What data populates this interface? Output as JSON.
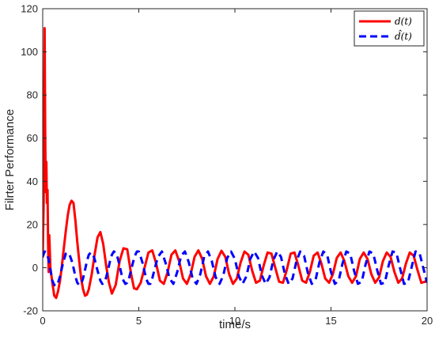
{
  "chart_data": {
    "type": "line",
    "title": "",
    "xlabel": "time/s",
    "ylabel": "Filrter Performance",
    "xlim": [
      0,
      20
    ],
    "ylim": [
      -20,
      120
    ],
    "xticks": [
      0,
      5,
      10,
      15,
      20
    ],
    "yticks": [
      -20,
      0,
      20,
      40,
      60,
      80,
      100,
      120
    ],
    "xtick_labels": [
      "0",
      "5",
      "10",
      "15",
      "20"
    ],
    "ytick_labels": [
      "-20",
      "0",
      "20",
      "40",
      "60",
      "80",
      "100",
      "120"
    ],
    "grid": false,
    "legend_position": "top-right",
    "series": [
      {
        "name": "d(t)",
        "name_display": "d(t)",
        "color": "#ff0000",
        "style": "solid",
        "x": [
          0.0,
          0.05,
          0.1,
          0.13,
          0.16,
          0.19,
          0.22,
          0.25,
          0.28,
          0.31,
          0.34,
          0.4,
          0.5,
          0.6,
          0.7,
          0.8,
          0.9,
          1.0,
          1.1,
          1.2,
          1.3,
          1.4,
          1.5,
          1.6,
          1.7,
          1.8,
          1.9,
          2.0,
          2.1,
          2.2,
          2.3,
          2.4,
          2.55,
          2.7,
          2.85,
          3.0,
          3.15,
          3.3,
          3.45,
          3.6,
          3.8,
          4.0,
          4.2,
          4.4,
          4.6,
          4.75,
          4.9,
          5.1,
          5.3,
          5.5,
          5.7,
          5.9,
          6.1,
          6.3,
          6.5,
          6.7,
          6.9,
          7.1,
          7.3,
          7.5,
          7.7,
          7.9,
          8.1,
          8.3,
          8.5,
          8.7,
          8.9,
          9.1,
          9.3,
          9.5,
          9.7,
          9.9,
          10.1,
          10.3,
          10.5,
          10.7,
          10.9,
          11.1,
          11.3,
          11.5,
          11.7,
          11.9,
          12.1,
          12.3,
          12.5,
          12.7,
          12.9,
          13.1,
          13.3,
          13.5,
          13.7,
          13.9,
          14.1,
          14.3,
          14.5,
          14.7,
          14.9,
          15.1,
          15.3,
          15.5,
          15.7,
          15.9,
          16.1,
          16.3,
          16.5,
          16.7,
          16.9,
          17.1,
          17.3,
          17.5,
          17.7,
          17.9,
          18.1,
          18.3,
          18.5,
          18.7,
          18.9,
          19.1,
          19.3,
          19.5,
          19.7,
          19.9,
          20.0
        ],
        "y": [
          5.0,
          30.0,
          111.0,
          60.0,
          35.0,
          49.0,
          30.0,
          36.0,
          12.0,
          -2.0,
          15.0,
          0.0,
          -7.0,
          -13.0,
          -14.0,
          -11.0,
          -6.0,
          1.0,
          9.0,
          17.0,
          24.0,
          29.0,
          31.0,
          30.0,
          22.0,
          12.0,
          3.0,
          -5.0,
          -10.0,
          -13.0,
          -12.5,
          -10.0,
          -3.0,
          6.0,
          14.0,
          16.5,
          11.0,
          1.0,
          -7.0,
          -12.0,
          -8.0,
          3.0,
          9.0,
          8.5,
          -3.0,
          -9.5,
          -10.0,
          -7.0,
          0.0,
          7.0,
          8.0,
          2.0,
          -6.0,
          -7.5,
          -2.0,
          6.0,
          8.0,
          3.0,
          -5.0,
          -7.5,
          -3.0,
          5.0,
          8.0,
          4.0,
          -4.0,
          -7.5,
          -4.0,
          4.0,
          7.8,
          5.0,
          -3.0,
          -7.5,
          -5.0,
          2.5,
          7.5,
          6.0,
          -1.5,
          -7.0,
          -6.0,
          1.0,
          7.0,
          6.5,
          0.0,
          -6.5,
          -7.0,
          -1.0,
          6.5,
          7.0,
          1.0,
          -6.0,
          -7.0,
          -2.0,
          5.5,
          7.0,
          2.0,
          -5.0,
          -7.0,
          -3.0,
          4.5,
          7.0,
          3.0,
          -4.0,
          -7.0,
          -4.0,
          4.0,
          7.0,
          4.0,
          -3.0,
          -7.0,
          -4.5,
          3.0,
          7.0,
          5.0,
          -2.0,
          -7.0,
          -5.0,
          2.0,
          7.0,
          5.5,
          -1.0,
          -7.0,
          -6.5,
          -5.5
        ]
      },
      {
        "name": "d̂(t)",
        "name_display": "d̂(t)",
        "color": "#0000ff",
        "style": "dashed",
        "x": [
          0.0,
          0.1,
          0.2,
          0.3,
          0.4,
          0.5,
          0.6,
          0.7,
          0.8,
          0.9,
          1.0,
          1.1,
          1.2,
          1.3,
          1.4,
          1.5,
          1.6,
          1.7,
          1.8,
          1.9,
          2.0,
          2.1,
          2.2,
          2.3,
          2.4,
          2.5,
          2.6,
          2.7,
          2.8,
          2.9,
          3.0,
          3.1,
          3.2,
          3.3,
          3.4,
          3.5,
          3.6,
          3.7,
          3.8,
          3.9,
          4.0,
          4.1,
          4.2,
          4.3,
          4.4,
          4.5,
          4.6,
          4.7,
          4.8,
          4.9,
          5.0,
          5.1,
          5.2,
          5.3,
          5.4,
          5.5,
          5.6,
          5.7,
          5.8,
          5.9,
          6.0,
          6.2,
          6.4,
          6.6,
          6.8,
          7.0,
          7.2,
          7.4,
          7.6,
          7.8,
          8.0,
          8.2,
          8.4,
          8.6,
          8.8,
          9.0,
          9.2,
          9.4,
          9.6,
          9.8,
          10.0,
          10.2,
          10.4,
          10.6,
          10.8,
          11.0,
          11.2,
          11.4,
          11.6,
          11.8,
          12.0,
          12.2,
          12.4,
          12.6,
          12.8,
          13.0,
          13.2,
          13.4,
          13.6,
          13.8,
          14.0,
          14.2,
          14.4,
          14.6,
          14.8,
          15.0,
          15.2,
          15.4,
          15.6,
          15.8,
          16.0,
          16.2,
          16.4,
          16.6,
          16.8,
          17.0,
          17.2,
          17.4,
          17.6,
          17.8,
          18.0,
          18.2,
          18.4,
          18.6,
          18.8,
          19.0,
          19.2,
          19.4,
          19.6,
          19.8,
          20.0
        ],
        "y": [
          5.0,
          7.5,
          7.0,
          4.0,
          -1.0,
          -6.0,
          -8.0,
          -8.5,
          -7.0,
          -4.0,
          0.0,
          3.5,
          6.5,
          7.0,
          6.0,
          3.5,
          0.0,
          -4.0,
          -7.0,
          -8.0,
          -7.5,
          -5.0,
          -1.0,
          3.0,
          6.0,
          7.0,
          6.5,
          4.0,
          0.5,
          -3.0,
          -6.0,
          -7.5,
          -7.0,
          -4.5,
          -1.0,
          3.0,
          6.0,
          7.5,
          7.0,
          4.5,
          1.0,
          -3.0,
          -6.0,
          -7.5,
          -7.0,
          -4.5,
          -1.0,
          2.5,
          5.5,
          7.5,
          7.5,
          5.0,
          2.0,
          -2.0,
          -5.5,
          -7.5,
          -7.5,
          -5.0,
          -1.5,
          2.0,
          5.0,
          7.5,
          2.0,
          -5.0,
          -7.5,
          -2.0,
          5.5,
          7.5,
          2.5,
          -5.0,
          -7.5,
          -3.0,
          5.0,
          7.5,
          3.0,
          -4.5,
          -7.5,
          -3.5,
          4.5,
          7.5,
          4.0,
          -4.0,
          -7.5,
          -4.0,
          4.0,
          7.5,
          4.5,
          -3.5,
          -7.5,
          -4.5,
          3.5,
          7.5,
          5.0,
          -3.0,
          -7.5,
          -5.0,
          3.0,
          7.5,
          5.5,
          -2.5,
          -7.5,
          -5.5,
          2.5,
          7.5,
          6.0,
          -2.0,
          -7.5,
          -6.0,
          2.0,
          7.5,
          6.5,
          -1.5,
          -7.5,
          -6.5,
          1.5,
          7.5,
          6.5,
          -1.0,
          -7.5,
          -7.0,
          1.0,
          7.5,
          7.0,
          -0.5,
          -7.5,
          -7.0,
          0.5,
          7.5,
          7.0,
          0.0,
          -7.0
        ]
      }
    ]
  }
}
